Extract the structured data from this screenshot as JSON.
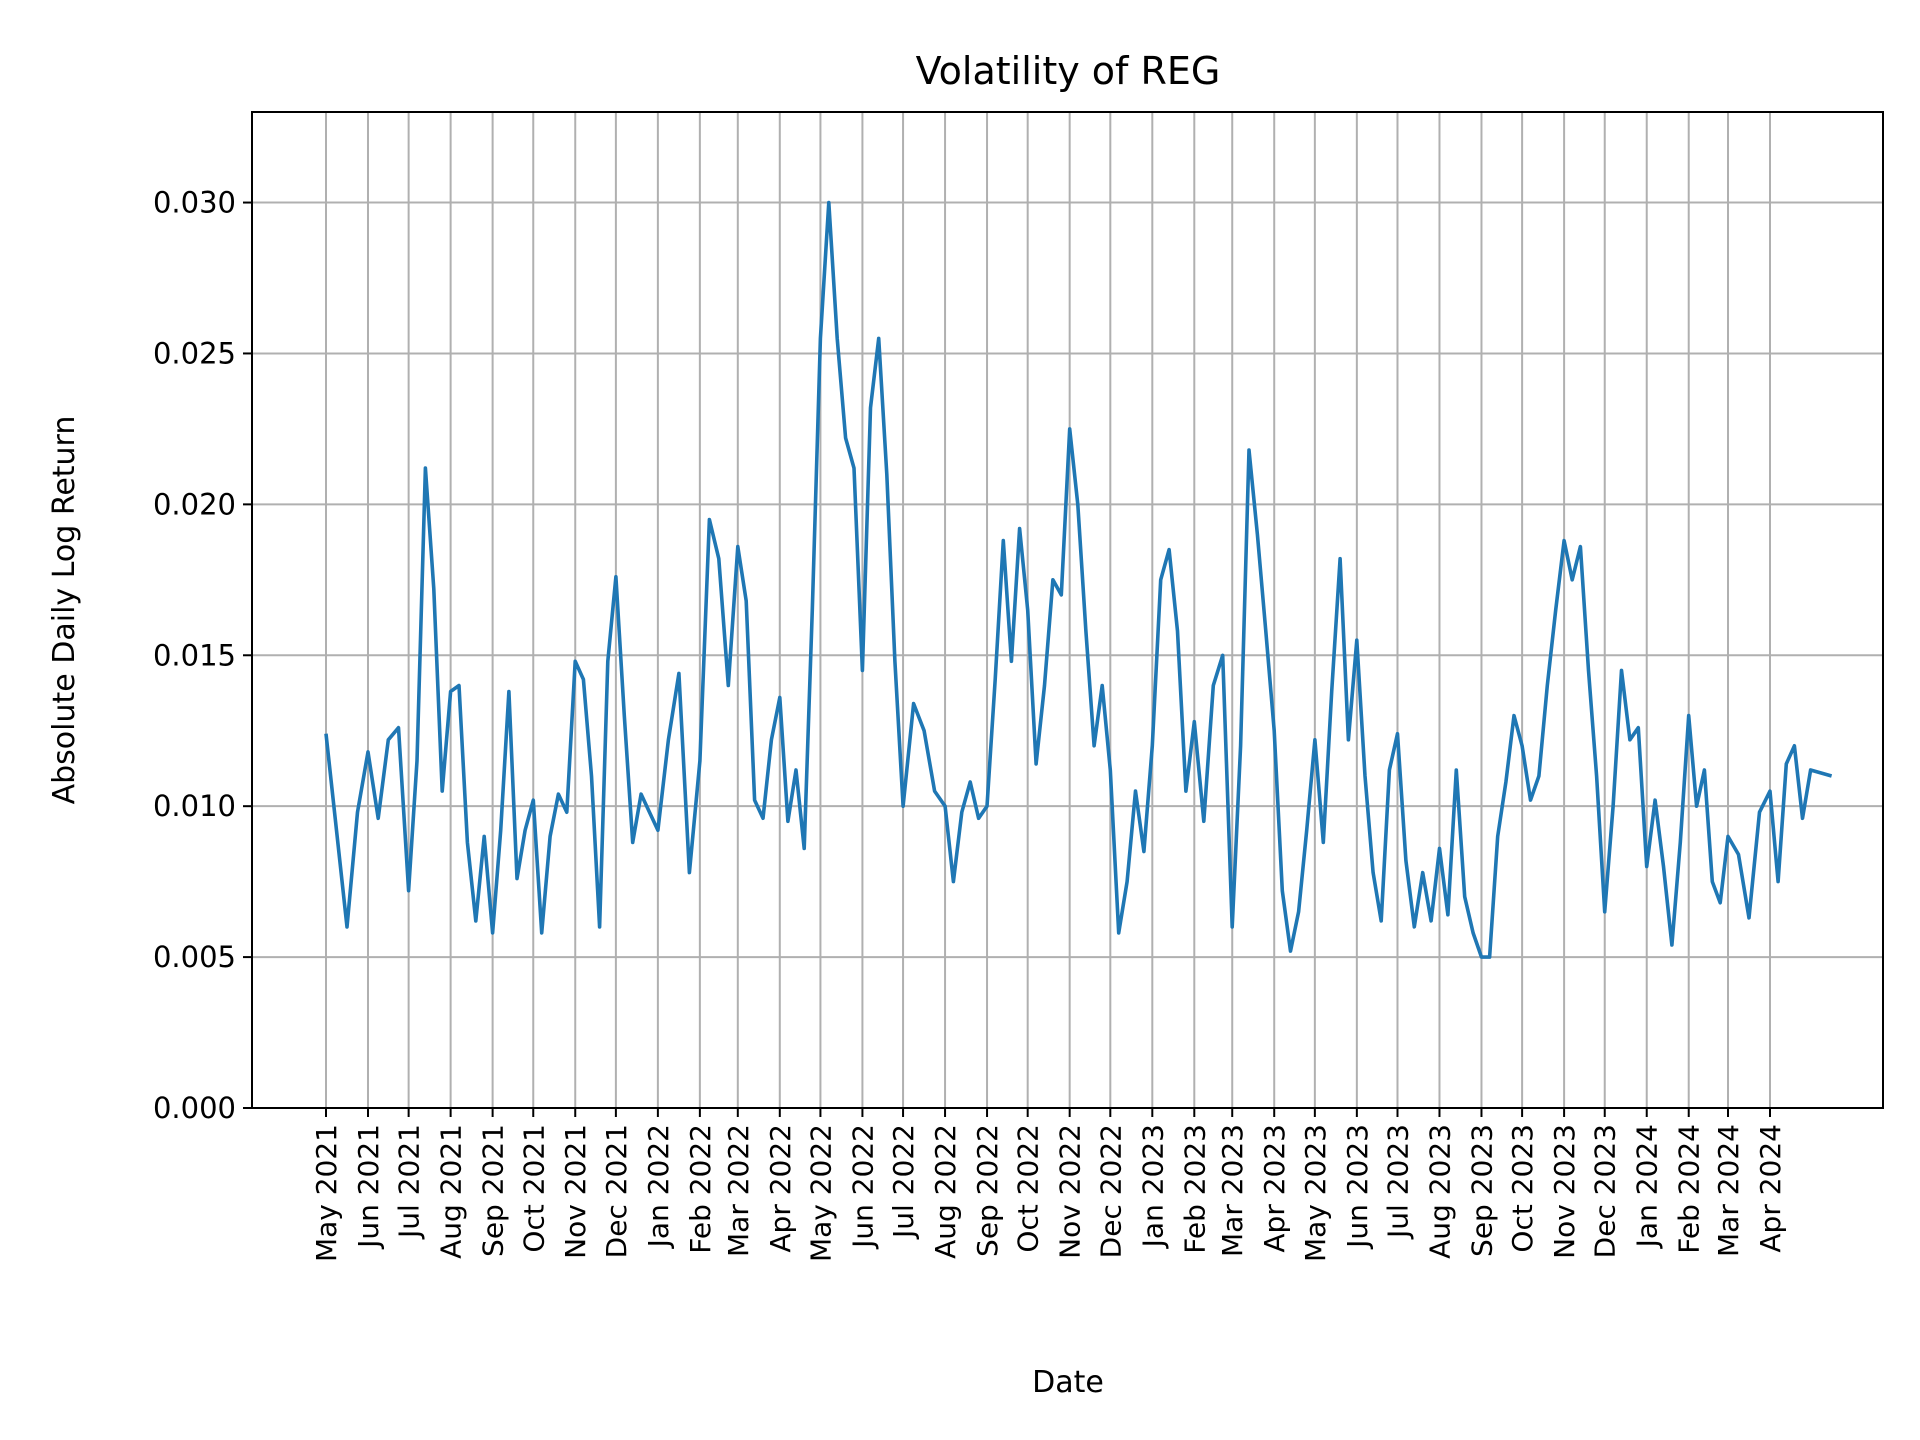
{
  "chart_data": {
    "type": "line",
    "title": "Volatility of REG",
    "xlabel": "Date",
    "ylabel": "Absolute Daily Log Return",
    "ylim": [
      0,
      0.033
    ],
    "yticks": [
      "0.000",
      "0.005",
      "0.010",
      "0.015",
      "0.020",
      "0.025",
      "0.030"
    ],
    "ytick_values": [
      0,
      0.005,
      0.01,
      0.015,
      0.02,
      0.025,
      0.03
    ],
    "xticks": [
      "May 2021",
      "Jun 2021",
      "Jul 2021",
      "Aug 2021",
      "Sep 2021",
      "Oct 2021",
      "Nov 2021",
      "Dec 2021",
      "Jan 2022",
      "Feb 2022",
      "Mar 2022",
      "Apr 2022",
      "May 2022",
      "Jun 2022",
      "Jul 2022",
      "Aug 2022",
      "Sep 2022",
      "Oct 2022",
      "Nov 2022",
      "Dec 2022",
      "Jan 2023",
      "Feb 2023",
      "Mar 2023",
      "Apr 2023",
      "May 2023",
      "Jun 2023",
      "Jul 2023",
      "Aug 2023",
      "Sep 2023",
      "Oct 2023",
      "Nov 2023",
      "Dec 2023",
      "Jan 2024",
      "Feb 2024",
      "Mar 2024",
      "Apr 2024"
    ],
    "grid": true,
    "color": "#1f77b4",
    "series_by_month": [
      {
        "month": "2021-05",
        "values": [
          0.0124,
          0.0092,
          0.006,
          0.0098
        ]
      },
      {
        "month": "2021-06",
        "values": [
          0.0118,
          0.0096,
          0.0122,
          0.0126
        ]
      },
      {
        "month": "2021-07",
        "values": [
          0.0072,
          0.0115,
          0.0212,
          0.0172,
          0.0105
        ]
      },
      {
        "month": "2021-08",
        "values": [
          0.0138,
          0.014,
          0.0088,
          0.0062,
          0.009
        ]
      },
      {
        "month": "2021-09",
        "values": [
          0.0058,
          0.0092,
          0.0138,
          0.0076,
          0.0092
        ]
      },
      {
        "month": "2021-10",
        "values": [
          0.0102,
          0.0058,
          0.009,
          0.0104,
          0.0098
        ]
      },
      {
        "month": "2021-11",
        "values": [
          0.0148,
          0.0142,
          0.011,
          0.006,
          0.0148
        ]
      },
      {
        "month": "2021-12",
        "values": [
          0.0176,
          0.013,
          0.0088,
          0.0104,
          0.0098
        ]
      },
      {
        "month": "2022-01",
        "values": [
          0.0092,
          0.0122,
          0.0144,
          0.0078
        ]
      },
      {
        "month": "2022-02",
        "values": [
          0.0115,
          0.0195,
          0.0182,
          0.014
        ]
      },
      {
        "month": "2022-03",
        "values": [
          0.0186,
          0.0168,
          0.0102,
          0.0096,
          0.0122
        ]
      },
      {
        "month": "2022-04",
        "values": [
          0.0136,
          0.0095,
          0.0112,
          0.0086,
          0.0165
        ]
      },
      {
        "month": "2022-05",
        "values": [
          0.0255,
          0.03,
          0.0255,
          0.0222,
          0.0212
        ]
      },
      {
        "month": "2022-06",
        "values": [
          0.0145,
          0.0232,
          0.0255,
          0.021,
          0.0148
        ]
      },
      {
        "month": "2022-07",
        "values": [
          0.01,
          0.0134,
          0.0125,
          0.0105
        ]
      },
      {
        "month": "2022-08",
        "values": [
          0.01,
          0.0075,
          0.0098,
          0.0108,
          0.0096
        ]
      },
      {
        "month": "2022-09",
        "values": [
          0.01,
          0.0142,
          0.0188,
          0.0148,
          0.0192
        ]
      },
      {
        "month": "2022-10",
        "values": [
          0.0165,
          0.0114,
          0.014,
          0.0175,
          0.017
        ]
      },
      {
        "month": "2022-11",
        "values": [
          0.0225,
          0.02,
          0.0158,
          0.012,
          0.014
        ]
      },
      {
        "month": "2022-12",
        "values": [
          0.0112,
          0.0058,
          0.0075,
          0.0105,
          0.0085
        ]
      },
      {
        "month": "2023-01",
        "values": [
          0.012,
          0.0175,
          0.0185,
          0.0158,
          0.0105
        ]
      },
      {
        "month": "2023-02",
        "values": [
          0.0128,
          0.0095,
          0.014,
          0.015
        ]
      },
      {
        "month": "2023-03",
        "values": [
          0.006,
          0.012,
          0.0218,
          0.019,
          0.0158
        ]
      },
      {
        "month": "2023-04",
        "values": [
          0.0125,
          0.0072,
          0.0052,
          0.0065,
          0.0092
        ]
      },
      {
        "month": "2023-05",
        "values": [
          0.0122,
          0.0088,
          0.0138,
          0.0182,
          0.0122
        ]
      },
      {
        "month": "2023-06",
        "values": [
          0.0155,
          0.011,
          0.0078,
          0.0062,
          0.0112
        ]
      },
      {
        "month": "2023-07",
        "values": [
          0.0124,
          0.0082,
          0.006,
          0.0078,
          0.0062
        ]
      },
      {
        "month": "2023-08",
        "values": [
          0.0086,
          0.0064,
          0.0112,
          0.007,
          0.0058
        ]
      },
      {
        "month": "2023-09",
        "values": [
          0.005,
          0.005,
          0.009,
          0.0108,
          0.013
        ]
      },
      {
        "month": "2023-10",
        "values": [
          0.012,
          0.0102,
          0.011,
          0.014,
          0.0165
        ]
      },
      {
        "month": "2023-11",
        "values": [
          0.0188,
          0.0175,
          0.0186,
          0.0145,
          0.011
        ]
      },
      {
        "month": "2023-12",
        "values": [
          0.0065,
          0.01,
          0.0145,
          0.0122,
          0.0126
        ]
      },
      {
        "month": "2024-01",
        "values": [
          0.008,
          0.0102,
          0.008,
          0.0054,
          0.0088
        ]
      },
      {
        "month": "2024-02",
        "values": [
          0.013,
          0.01,
          0.0112,
          0.0075,
          0.0068
        ]
      },
      {
        "month": "2024-03",
        "values": [
          0.009,
          0.0084,
          0.0063,
          0.0098
        ]
      },
      {
        "month": "2024-04",
        "values": [
          0.0105,
          0.0075,
          0.0114,
          0.012,
          0.0096
        ]
      },
      {
        "month": "2024-05",
        "values": [
          0.0112,
          0.011
        ]
      }
    ]
  }
}
